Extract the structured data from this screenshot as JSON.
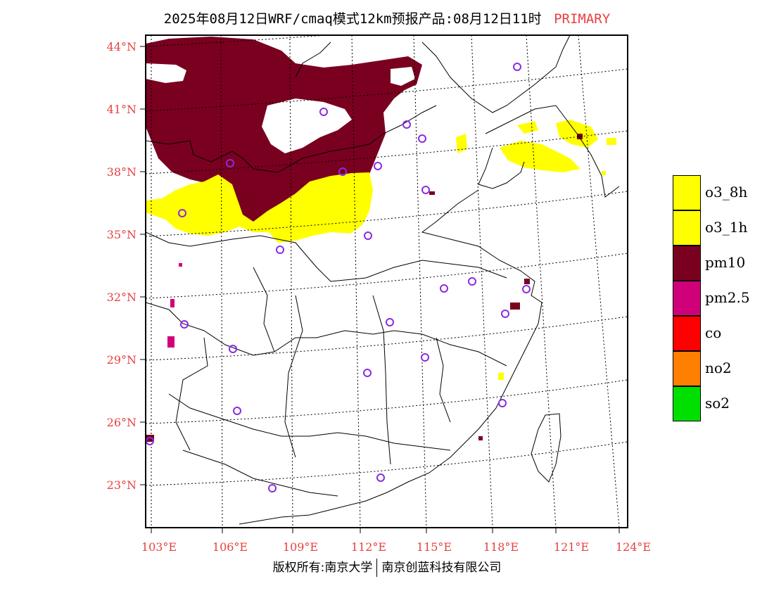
{
  "title": {
    "main": "2025年08月12日WRF/cmaq模式12km预报产品:08月12日11时",
    "tag": "PRIMARY",
    "tag_color": "#e84040"
  },
  "axes": {
    "x_labels": [
      "103°E",
      "106°E",
      "109°E",
      "112°E",
      "115°E",
      "118°E",
      "121°E",
      "124°E"
    ],
    "y_labels": [
      "44°N",
      "41°N",
      "38°N",
      "35°N",
      "32°N",
      "29°N",
      "26°N",
      "23°N"
    ],
    "label_color": "#e84040"
  },
  "legend": [
    {
      "label": "o3_8h",
      "color": "#ffff00"
    },
    {
      "label": "o3_1h",
      "color": "#ffff00"
    },
    {
      "label": "pm10",
      "color": "#7a0020"
    },
    {
      "label": "pm2.5",
      "color": "#d0007a"
    },
    {
      "label": "co",
      "color": "#ff0000"
    },
    {
      "label": "no2",
      "color": "#ff8000"
    },
    {
      "label": "so2",
      "color": "#00e000"
    }
  ],
  "footer": {
    "left": "版权所有:南京大学",
    "right": "南京创蓝科技有限公司"
  },
  "colors": {
    "pm10": "#7a0020",
    "o3": "#ffff00",
    "pm25": "#d0007a",
    "station": "#8a2be2"
  }
}
